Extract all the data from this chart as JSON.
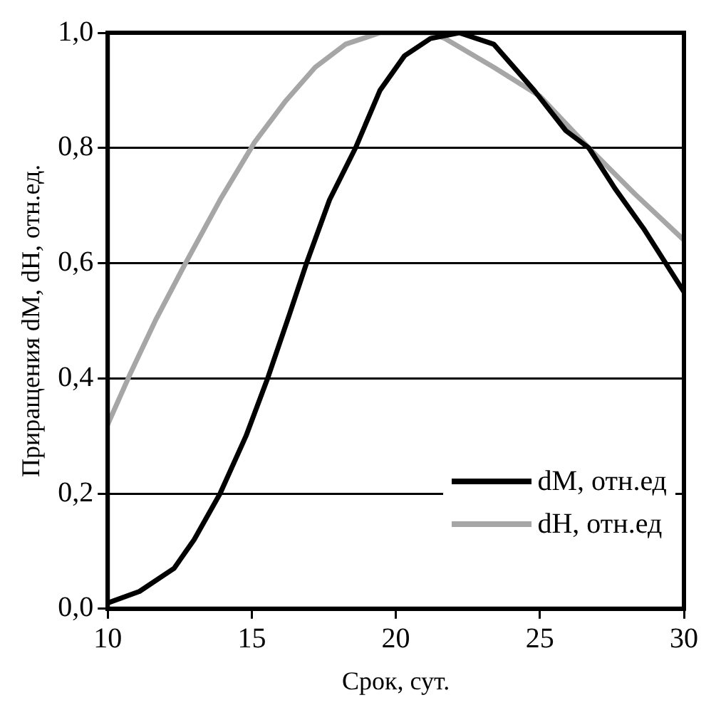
{
  "chart_data": {
    "type": "line",
    "xlabel": "Срок, сут.",
    "ylabel": "Приращения dM, dH, отн.ед.",
    "xlim": [
      10,
      30
    ],
    "xticks": [
      10,
      15,
      20,
      25,
      30
    ],
    "ylim": [
      0,
      1
    ],
    "yticks": [
      {
        "value": 0,
        "label": "0,0"
      },
      {
        "value": 0.2,
        "label": "0,2"
      },
      {
        "value": 0.4,
        "label": "0,4"
      },
      {
        "value": 0.6,
        "label": "0,6"
      },
      {
        "value": 0.8,
        "label": "0,8"
      },
      {
        "value": 1,
        "label": "1,0"
      }
    ],
    "grid": "y",
    "legend": "bottom right",
    "marker": "none",
    "line_style": "solid",
    "series": [
      {
        "name": "dM, отн.ед",
        "color": "#000000",
        "x": [
          10,
          11.1,
          12.3,
          13,
          13.9,
          14.8,
          15.55,
          16.3,
          16.9,
          17.7,
          18.6,
          19.45,
          20.3,
          21.2,
          22.2,
          23.4,
          24.8,
          25.9,
          26.7,
          27.6,
          28.6,
          30
        ],
        "values": [
          0.01,
          0.03,
          0.07,
          0.12,
          0.2,
          0.3,
          0.4,
          0.51,
          0.6,
          0.71,
          0.8,
          0.9,
          0.96,
          0.99,
          1,
          0.98,
          0.9,
          0.83,
          0.8,
          0.73,
          0.66,
          0.55
        ]
      },
      {
        "name": "dH, отн.ед",
        "color": "#a6a6a6",
        "x": [
          10,
          10.8,
          11.65,
          12.7,
          13.9,
          15.1,
          16.15,
          17.2,
          18.25,
          19.45,
          21.2,
          21.7,
          23.4,
          25,
          26.7,
          28.3,
          30
        ],
        "values": [
          0.32,
          0.41,
          0.5,
          0.6,
          0.71,
          0.81,
          0.88,
          0.94,
          0.98,
          1,
          1,
          0.99,
          0.94,
          0.89,
          0.8,
          0.72,
          0.64
        ]
      }
    ]
  }
}
